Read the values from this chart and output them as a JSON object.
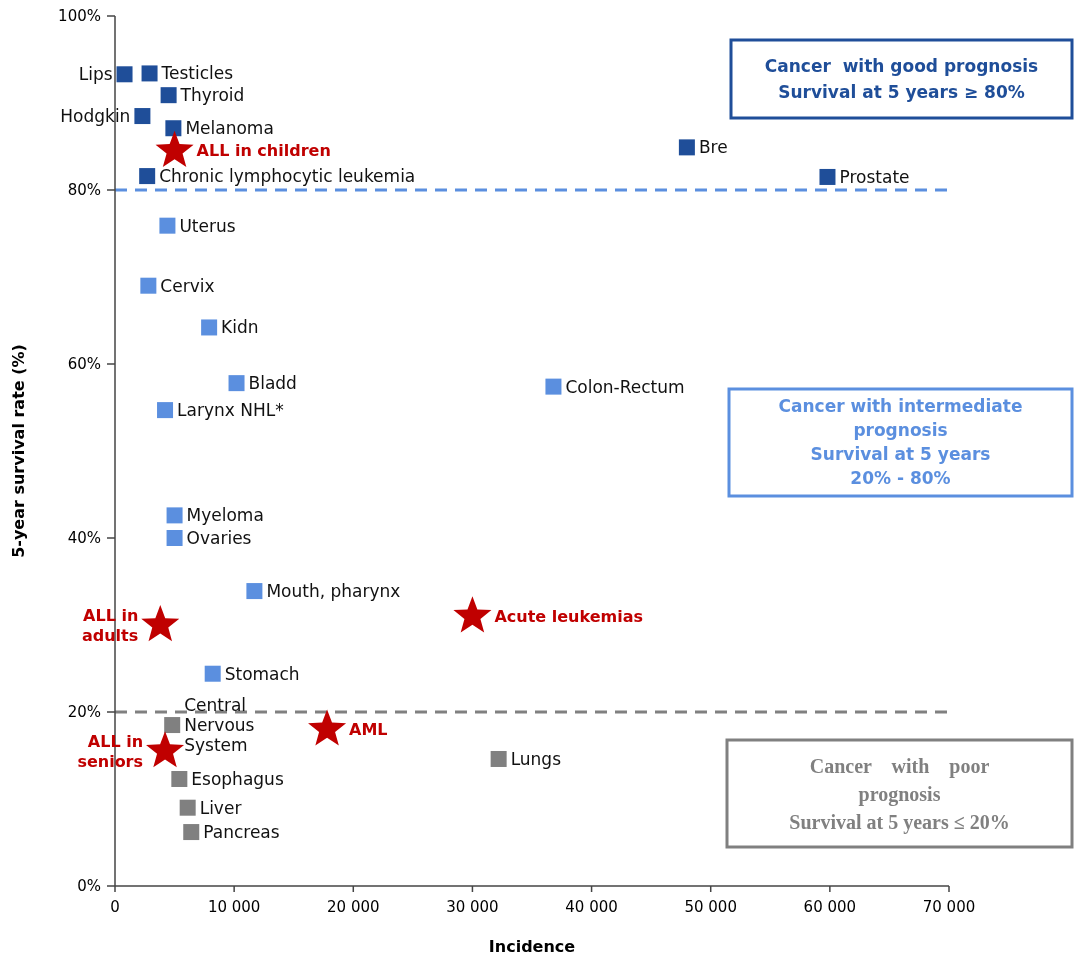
{
  "chart_data": {
    "type": "scatter",
    "xlabel": "Incidence",
    "ylabel": "5-year survival rate (%)",
    "xlim": [
      0,
      70000
    ],
    "ylim": [
      0,
      100
    ],
    "xticks": [
      {
        "value": 0,
        "label": "0"
      },
      {
        "value": 10000,
        "label": "10 000"
      },
      {
        "value": 20000,
        "label": "20 000"
      },
      {
        "value": 30000,
        "label": "30 000"
      },
      {
        "value": 40000,
        "label": "40 000"
      },
      {
        "value": 50000,
        "label": "50 000"
      },
      {
        "value": 60000,
        "label": "60 000"
      },
      {
        "value": 70000,
        "label": "70 000"
      }
    ],
    "yticks": [
      {
        "value": 0,
        "label": "0%"
      },
      {
        "value": 20,
        "label": "20%"
      },
      {
        "value": 40,
        "label": "40%"
      },
      {
        "value": 60,
        "label": "60%"
      },
      {
        "value": 80,
        "label": "80%"
      },
      {
        "value": 100,
        "label": "100%"
      }
    ],
    "grid": false,
    "series": [
      {
        "color": "#1f4e99",
        "marker": "square",
        "x": [
          800,
          2900,
          4500,
          2300,
          4900,
          2700,
          48000,
          59800
        ],
        "values": [
          93.3,
          93.4,
          90.9,
          88.5,
          87.1,
          81.6,
          84.9,
          81.5
        ]
      },
      {
        "color": "#5b8fdf",
        "marker": "square",
        "x": [
          4400,
          2800,
          7900,
          10200,
          36800,
          4200,
          5000,
          5000,
          11700,
          8200
        ],
        "values": [
          75.9,
          69.0,
          64.2,
          57.8,
          57.4,
          54.7,
          42.6,
          40.0,
          33.9,
          24.4
        ]
      },
      {
        "color": "#808080",
        "marker": "square",
        "x": [
          4800,
          32200,
          5400,
          6100,
          6400
        ],
        "values": [
          18.5,
          14.6,
          12.3,
          9.0,
          6.2
        ]
      },
      {
        "color": "#c00000",
        "marker": "star",
        "x": [
          5000,
          3800,
          30000,
          4200,
          17800
        ],
        "values": [
          84.5,
          30.0,
          31.0,
          15.5,
          18.0
        ]
      }
    ],
    "ref_lines": [
      {
        "axis": "y",
        "value": 80,
        "label": null,
        "color": "#5b8fdf",
        "line_style": "dashed"
      },
      {
        "axis": "y",
        "value": 20,
        "label": null,
        "color": "#808080",
        "line_style": "dashed"
      }
    ],
    "annotations": [
      "Cancer  with good prognosis\nSurvival at 5 years ≥ 80%",
      "Cancer with intermediate\nprognosis\nSurvival at 5 years\n20% - 80%",
      "Cancer    with    poor\nprognosis\nSurvival at 5 years ≤ 20%",
      {
        "text": "Lips",
        "x": 800,
        "y": 93.3
      },
      {
        "text": "Testicles",
        "x": 2900,
        "y": 93.4
      },
      {
        "text": "Thyroid",
        "x": 4500,
        "y": 90.9
      },
      {
        "text": "Hodgkin",
        "x": 2300,
        "y": 88.5
      },
      {
        "text": "Melanoma",
        "x": 4900,
        "y": 87.1
      },
      {
        "text": "Chronic lymphocytic leukemia",
        "x": 2700,
        "y": 81.6
      },
      {
        "text": "Bre",
        "x": 48000,
        "y": 84.9
      },
      {
        "text": "Prostate",
        "x": 59800,
        "y": 81.5
      },
      {
        "text": "Uterus",
        "x": 4400,
        "y": 75.9
      },
      {
        "text": "Cervix",
        "x": 2800,
        "y": 69.0
      },
      {
        "text": "Kidn",
        "x": 7900,
        "y": 64.2
      },
      {
        "text": "Bladd",
        "x": 10200,
        "y": 57.8
      },
      {
        "text": "Colon-Rectum",
        "x": 36800,
        "y": 57.4
      },
      {
        "text": "Larynx NHL*",
        "x": 4200,
        "y": 54.7
      },
      {
        "text": "Myeloma",
        "x": 5000,
        "y": 42.6
      },
      {
        "text": "Ovaries",
        "x": 5000,
        "y": 40.0
      },
      {
        "text": "Mouth, pharynx",
        "x": 11700,
        "y": 33.9
      },
      {
        "text": "Stomach",
        "x": 8200,
        "y": 24.4
      },
      {
        "text": "Central\nNervous\nSystem",
        "x": 4800,
        "y": 18.5
      },
      {
        "text": "Lungs",
        "x": 32200,
        "y": 14.6
      },
      {
        "text": "Esophagus",
        "x": 5400,
        "y": 12.3
      },
      {
        "text": "Liver",
        "x": 6100,
        "y": 9.0
      },
      {
        "text": "Pancreas",
        "x": 6400,
        "y": 6.2
      },
      {
        "text": "ALL in children",
        "x": 5000,
        "y": 84.5
      },
      {
        "text": "ALL in\nadults",
        "x": 3800,
        "y": 30.0
      },
      {
        "text": "Acute leukemias",
        "x": 30000,
        "y": 31.0
      },
      {
        "text": "ALL in\nseniors",
        "x": 4200,
        "y": 15.5
      },
      {
        "text": "AML",
        "x": 17800,
        "y": 18.0
      }
    ]
  }
}
